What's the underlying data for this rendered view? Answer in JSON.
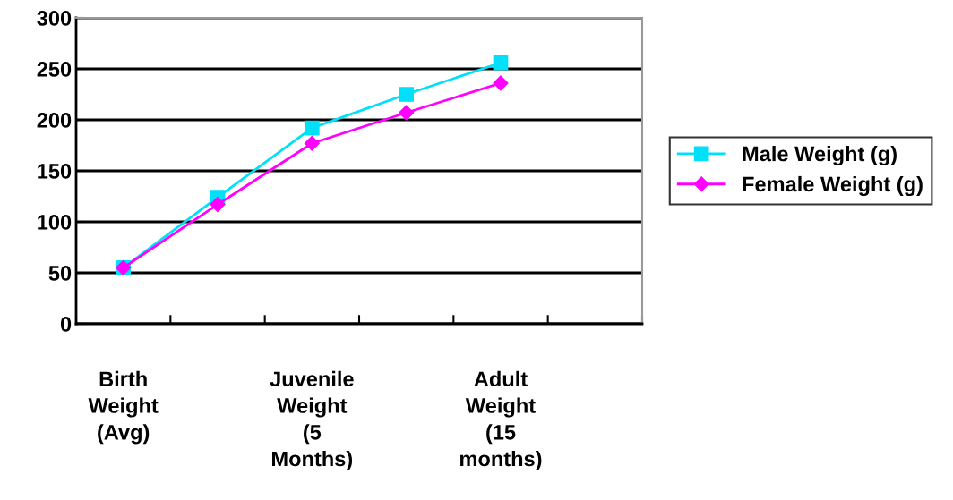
{
  "chart_data": {
    "type": "line",
    "categories": [
      "Birth Weight (Avg)",
      null,
      "Juvenile Weight (5 Months)",
      null,
      "Adult Weight (15 months)",
      null
    ],
    "series": [
      {
        "name": "Male Weight (g)",
        "color": "#00e0f8",
        "marker": "square",
        "values": [
          55,
          124,
          192,
          225,
          256,
          null
        ]
      },
      {
        "name": "Female Weight (g)",
        "color": "#ff00ff",
        "marker": "diamond",
        "values": [
          55,
          117,
          177,
          207,
          236,
          null
        ]
      }
    ],
    "ylim": [
      0,
      300
    ],
    "yticks": [
      0,
      50,
      100,
      150,
      200,
      250,
      300
    ],
    "grid": "y",
    "legend": "right",
    "line_style": "solid"
  }
}
